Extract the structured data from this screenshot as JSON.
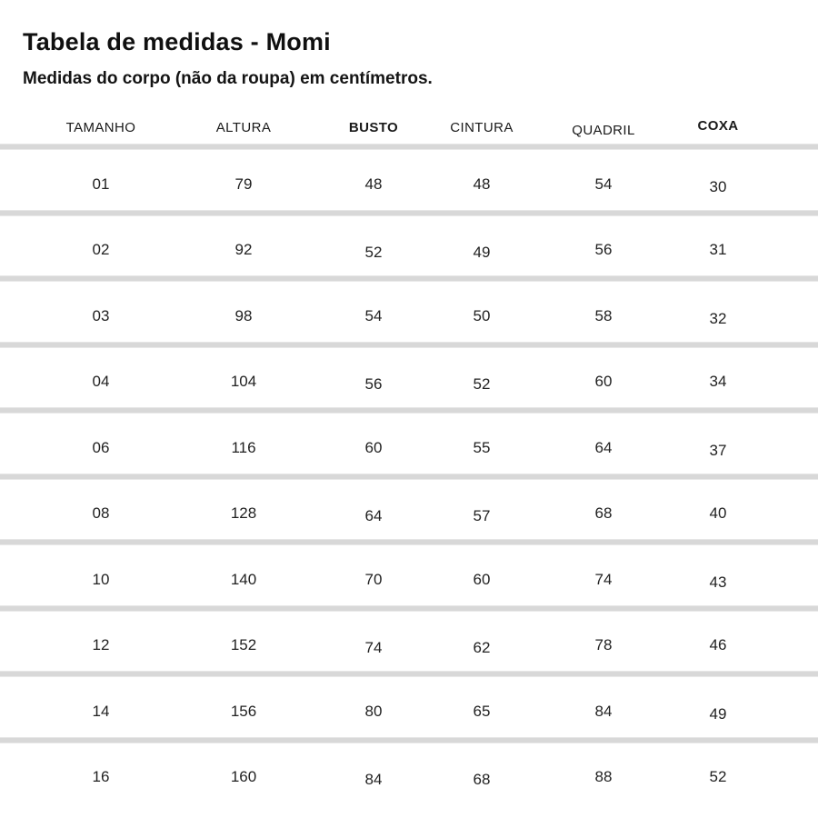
{
  "page": {
    "title": "Tabela de medidas - Momi",
    "subtitle": "Medidas do corpo (não da roupa) em centímetros."
  },
  "chart_data": {
    "type": "table",
    "title": "Tabela de medidas - Momi",
    "subtitle": "Medidas do corpo (não da roupa) em centímetros.",
    "unit": "centímetros",
    "columns": [
      "TAMANHO",
      "ALTURA",
      "BUSTO",
      "CINTURA",
      "QUADRIL",
      "COXA"
    ],
    "column_keys": [
      "tamanho",
      "altura",
      "busto",
      "cintura",
      "quadril",
      "coxa"
    ],
    "emphasized_column_indexes": [
      2,
      5
    ],
    "rows": [
      [
        "01",
        "79",
        "48",
        "48",
        "54",
        "30"
      ],
      [
        "02",
        "92",
        "52",
        "49",
        "56",
        "31"
      ],
      [
        "03",
        "98",
        "54",
        "50",
        "58",
        "32"
      ],
      [
        "04",
        "104",
        "56",
        "52",
        "60",
        "34"
      ],
      [
        "06",
        "116",
        "60",
        "55",
        "64",
        "37"
      ],
      [
        "08",
        "128",
        "64",
        "57",
        "68",
        "40"
      ],
      [
        "10",
        "140",
        "70",
        "60",
        "74",
        "43"
      ],
      [
        "12",
        "152",
        "74",
        "62",
        "78",
        "46"
      ],
      [
        "14",
        "156",
        "80",
        "65",
        "84",
        "49"
      ],
      [
        "16",
        "160",
        "84",
        "68",
        "88",
        "52"
      ]
    ]
  },
  "colors": {
    "text": "#1e1e1e",
    "divider": "#d8d8d8",
    "background": "#ffffff"
  }
}
